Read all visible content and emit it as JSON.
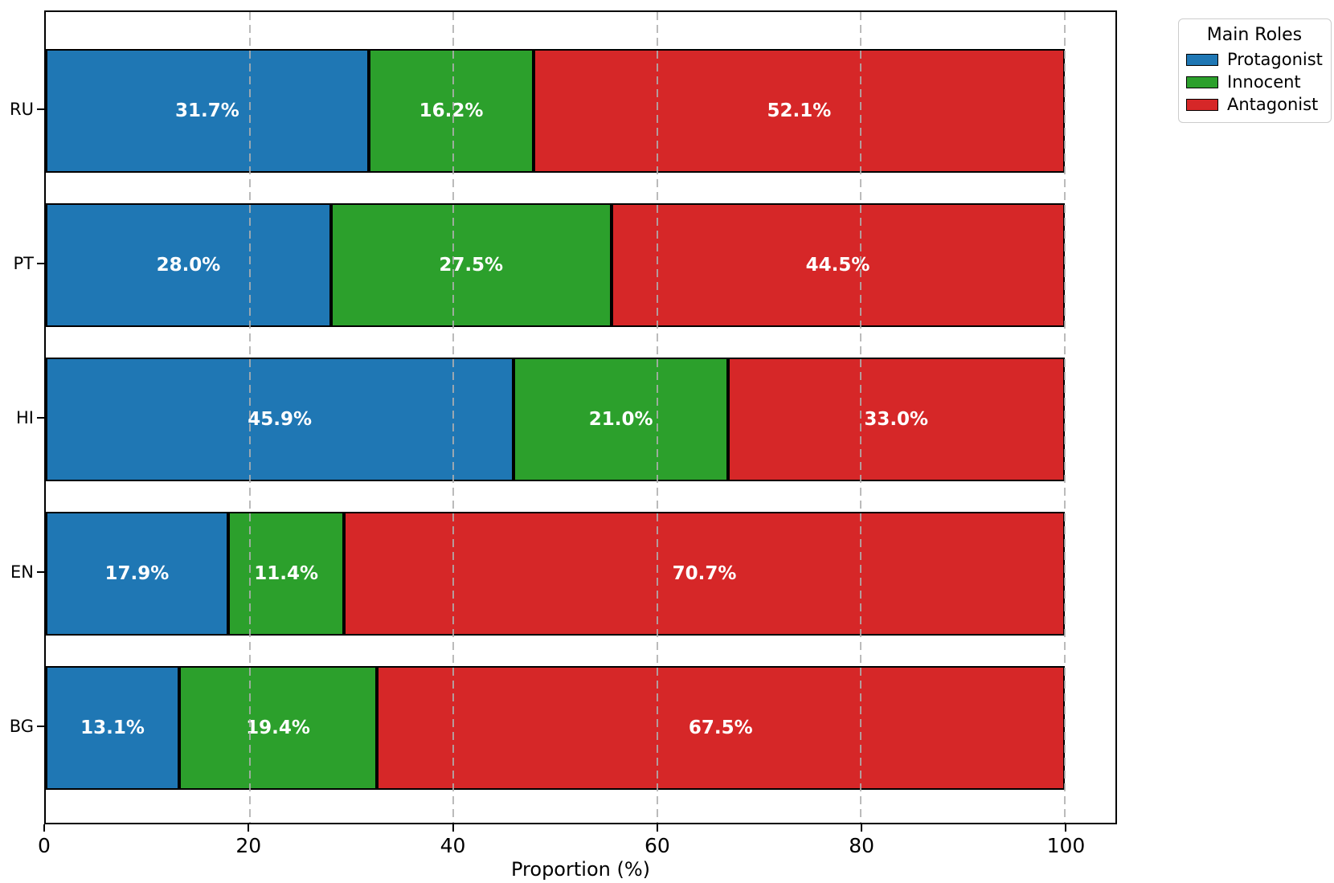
{
  "figure": {
    "background": "#ffffff"
  },
  "chart_data": {
    "type": "bar",
    "orientation": "horizontal_stacked",
    "categories": [
      "RU",
      "PT",
      "HI",
      "EN",
      "BG"
    ],
    "series": [
      {
        "name": "Protagonist",
        "color": "#1f77b4",
        "values": [
          31.7,
          28.0,
          45.9,
          17.9,
          13.1
        ]
      },
      {
        "name": "Innocent",
        "color": "#2ca02c",
        "values": [
          16.2,
          27.5,
          21.0,
          11.4,
          19.4
        ]
      },
      {
        "name": "Antagonist",
        "color": "#d62728",
        "values": [
          52.1,
          44.5,
          33.0,
          70.7,
          67.5
        ]
      }
    ],
    "bar_labels": [
      [
        "31.7%",
        "16.2%",
        "52.1%"
      ],
      [
        "28.0%",
        "27.5%",
        "44.5%"
      ],
      [
        "45.9%",
        "21.0%",
        "33.0%"
      ],
      [
        "17.9%",
        "11.4%",
        "70.7%"
      ],
      [
        "13.1%",
        "19.4%",
        "67.5%"
      ]
    ],
    "xlabel": "Proportion (%)",
    "x_tick_labels": [
      "0",
      "20",
      "40",
      "60",
      "80",
      "100"
    ],
    "x_tick_values": [
      0,
      20,
      40,
      60,
      80,
      100
    ],
    "xlim": [
      0,
      105
    ],
    "grid": {
      "axis": "x",
      "style": "dashed",
      "color": "#afafaf",
      "over_bars": true
    },
    "bar_edge_color": "#000000",
    "bar_label_color": "#ffffff",
    "legend": {
      "title": "Main Roles",
      "entries": [
        "Protagonist",
        "Innocent",
        "Antagonist"
      ],
      "position": "outside-top-right"
    }
  }
}
